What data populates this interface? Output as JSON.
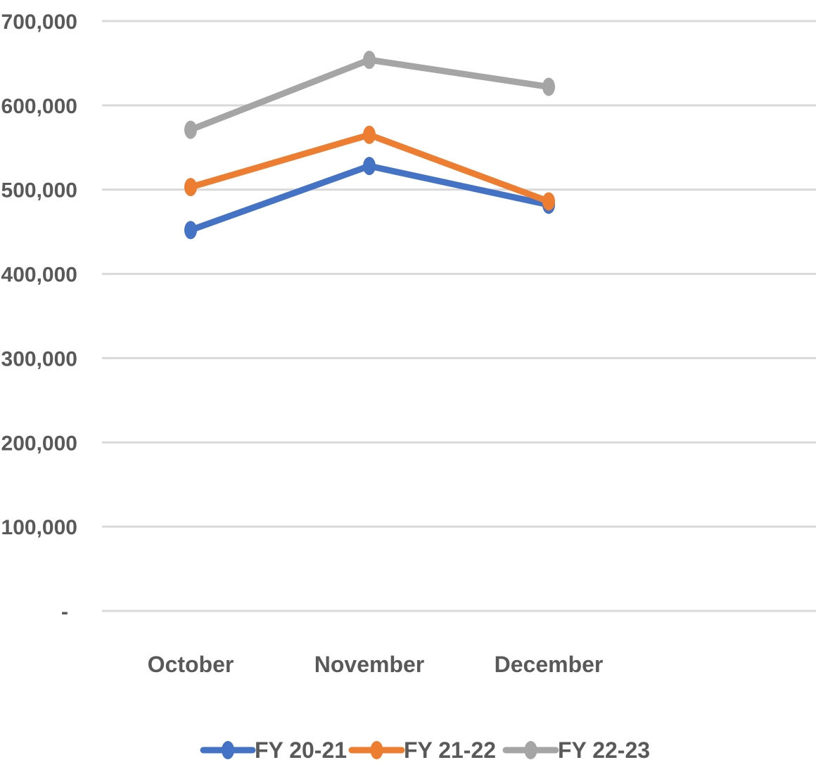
{
  "chart_data": {
    "type": "line",
    "categories": [
      "October",
      "November",
      "December"
    ],
    "series": [
      {
        "name": "FY 20-21",
        "values": [
          452000,
          528000,
          482000
        ],
        "color": "#4472C4"
      },
      {
        "name": "FY 21-22",
        "values": [
          503000,
          565000,
          486000
        ],
        "color": "#ED7D31"
      },
      {
        "name": "FY 22-23",
        "values": [
          571000,
          654000,
          622000
        ],
        "color": "#A5A5A5"
      }
    ],
    "ylim": [
      0,
      700000
    ],
    "yticks": [
      {
        "value": 0,
        "label": "-"
      },
      {
        "value": 100000,
        "label": "100,000"
      },
      {
        "value": 200000,
        "label": "200,000"
      },
      {
        "value": 300000,
        "label": "300,000"
      },
      {
        "value": 400000,
        "label": "400,000"
      },
      {
        "value": 500000,
        "label": "500,000"
      },
      {
        "value": 600000,
        "label": "600,000"
      },
      {
        "value": 700000,
        "label": "700,000"
      }
    ],
    "title": "",
    "xlabel": "",
    "ylabel": "",
    "grid": true,
    "gridColor": "#D9D9D9",
    "legend": "bottom"
  }
}
